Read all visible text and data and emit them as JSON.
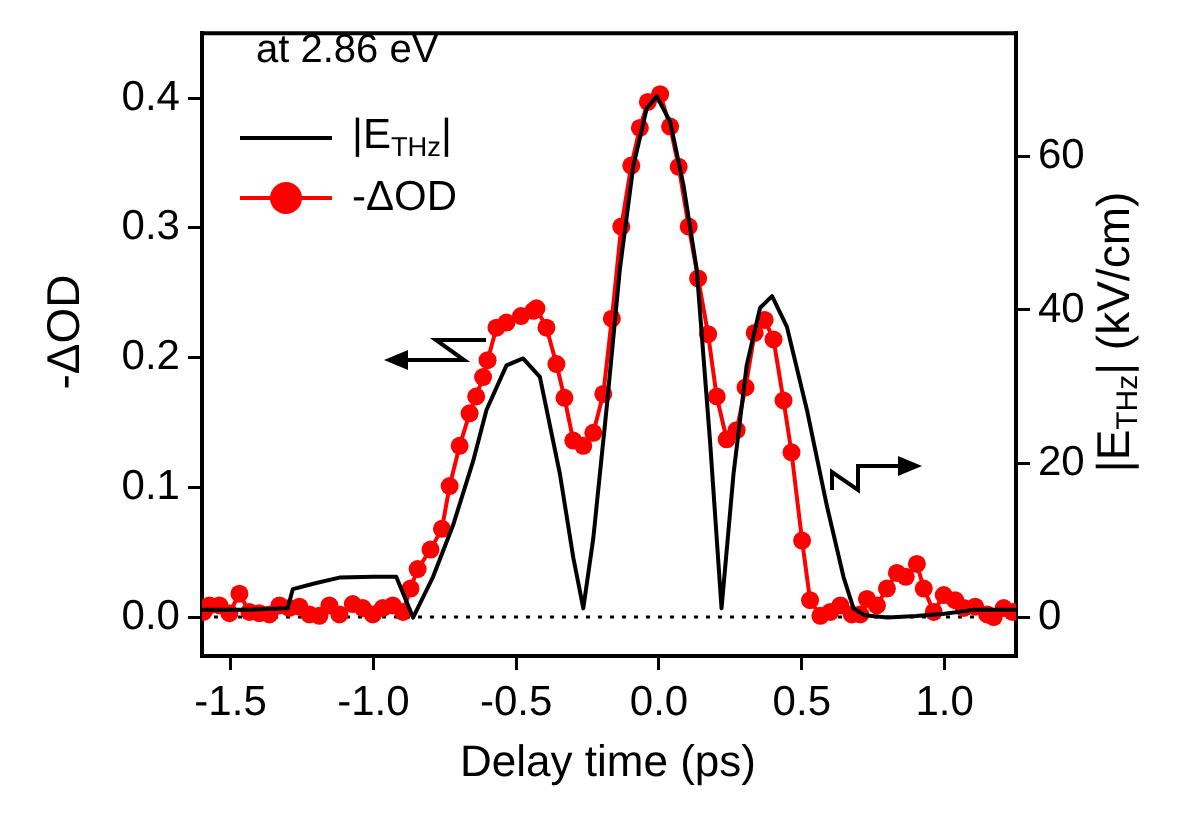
{
  "chart_data": {
    "type": "line",
    "xlabel": "Delay time (ps)",
    "ylabel": "-ΔOD",
    "y2label": "|E$_{THz}$| (kV/cm)",
    "annotations": [
      "at 2.86 eV"
    ],
    "xlim": [
      -1.6,
      1.25
    ],
    "xticks": [
      -1.5,
      {
        "value": -1,
        "label": "-1.0"
      },
      -0.5,
      {
        "value": 0,
        "label": "0.0"
      },
      0.5,
      {
        "value": 1,
        "label": "1.0"
      }
    ],
    "ylim": [
      -0.03,
      0.45
    ],
    "yticks": [
      {
        "value": 0,
        "label": "0.0"
      },
      0.1,
      0.2,
      0.3,
      0.4
    ],
    "y2lim": [
      -5,
      76
    ],
    "y2ticks": [
      0,
      20,
      40,
      60
    ],
    "grid": false,
    "legend": "top left",
    "line_style": "solid",
    "ref_lines": [
      {
        "axis": "y",
        "value": 0,
        "line_style": "dotted",
        "color": "#000000"
      }
    ],
    "series": [
      {
        "name": "|E$_{THz}$|",
        "color": "#000000",
        "axis": "y2",
        "marker": "none",
        "x": [
          -1.6,
          -1.45,
          -1.3,
          -1.282,
          -1.2,
          -1.119,
          -1.0,
          -0.92,
          -0.861,
          -0.791,
          -0.721,
          -0.651,
          -0.604,
          -0.534,
          -0.476,
          -0.417,
          -0.347,
          -0.3,
          -0.265,
          -0.23,
          -0.184,
          -0.137,
          -0.09,
          -0.043,
          -0.008,
          0.039,
          0.086,
          0.132,
          0.179,
          0.219,
          0.261,
          0.307,
          0.354,
          0.396,
          0.448,
          0.518,
          0.588,
          0.646,
          0.681,
          0.72,
          0.8,
          0.9,
          1.0,
          1.1,
          1.25
        ],
        "values": [
          1,
          1,
          1.2,
          3.7,
          4.5,
          5.2,
          5.3,
          5.3,
          0,
          5.3,
          12,
          20.3,
          27,
          32.8,
          33.7,
          31.3,
          18.7,
          7.8,
          1.2,
          10.3,
          27,
          45.3,
          58.7,
          66.2,
          67.8,
          64.5,
          56.2,
          45.3,
          22.8,
          1.2,
          18.7,
          32.8,
          40.3,
          41.8,
          37.8,
          27,
          14.5,
          5.3,
          1.2,
          0.3,
          0,
          0.2,
          0.5,
          1,
          1
        ]
      },
      {
        "name": "-ΔOD",
        "color": "#ff0000",
        "marker": "circle",
        "x": [
          -1.595,
          -1.574,
          -1.539,
          -1.504,
          -1.469,
          -1.434,
          -1.399,
          -1.364,
          -1.329,
          -1.294,
          -1.259,
          -1.224,
          -1.189,
          -1.154,
          -1.119,
          -1.072,
          -1.037,
          -1.002,
          -0.967,
          -0.932,
          -0.896,
          -0.87,
          -0.845,
          -0.8,
          -0.76,
          -0.733,
          -0.698,
          -0.663,
          -0.64,
          -0.616,
          -0.6,
          -0.569,
          -0.534,
          -0.483,
          -0.44,
          -0.429,
          -0.394,
          -0.359,
          -0.331,
          -0.3,
          -0.265,
          -0.23,
          -0.195,
          -0.165,
          -0.132,
          -0.097,
          -0.067,
          -0.039,
          0.004,
          0.039,
          0.069,
          0.104,
          0.137,
          0.172,
          0.202,
          0.237,
          0.272,
          0.303,
          0.335,
          0.37,
          0.401,
          0.436,
          0.464,
          0.501,
          0.529,
          0.565,
          0.6,
          0.635,
          0.675,
          0.705,
          0.728,
          0.763,
          0.798,
          0.833,
          0.864,
          0.903,
          0.927,
          0.962,
          0.997,
          1.037,
          1.067,
          1.107,
          1.149,
          1.172,
          1.207,
          1.238
        ],
        "values": [
          0.004,
          0.009,
          0.009,
          0.003,
          0.018,
          0.004,
          0.003,
          0.002,
          0.009,
          0.007,
          0.008,
          0.002,
          0.001,
          0.009,
          0.002,
          0.01,
          0.007,
          0.002,
          0.007,
          0.009,
          0.004,
          0.022,
          0.037,
          0.052,
          0.068,
          0.101,
          0.132,
          0.157,
          0.17,
          0.185,
          0.198,
          0.223,
          0.227,
          0.232,
          0.236,
          0.238,
          0.223,
          0.195,
          0.169,
          0.136,
          0.132,
          0.142,
          0.172,
          0.23,
          0.301,
          0.348,
          0.377,
          0.397,
          0.403,
          0.378,
          0.347,
          0.301,
          0.261,
          0.218,
          0.17,
          0.137,
          0.144,
          0.177,
          0.219,
          0.229,
          0.214,
          0.167,
          0.127,
          0.059,
          0.013,
          0.001,
          0.004,
          0.009,
          0.002,
          0.002,
          0.014,
          0.009,
          0.022,
          0.034,
          0.031,
          0.041,
          0.022,
          0.004,
          0.017,
          0.013,
          0.007,
          0.008,
          0.002,
          0,
          0.007,
          0.004
        ]
      }
    ]
  }
}
